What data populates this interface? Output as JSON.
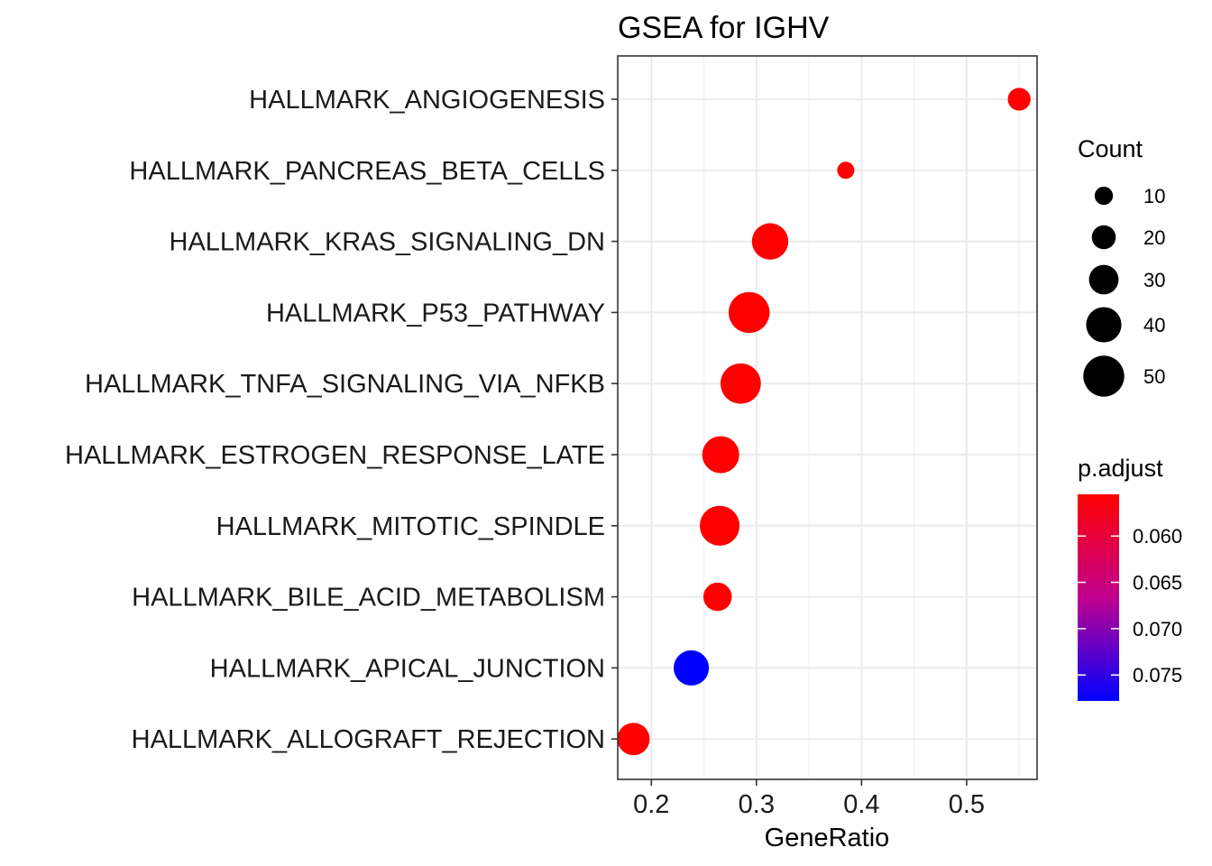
{
  "chart_data": {
    "type": "scatter",
    "title": "GSEA for IGHV",
    "xlabel": "GeneRatio",
    "ylabel": "",
    "xlim": [
      0.168,
      0.567
    ],
    "x_ticks": [
      0.2,
      0.3,
      0.4,
      0.5
    ],
    "x_tick_labels": [
      "0.2",
      "0.3",
      "0.4",
      "0.5"
    ],
    "grid": true,
    "categories": [
      "HALLMARK_ANGIOGENESIS",
      "HALLMARK_PANCREAS_BETA_CELLS",
      "HALLMARK_KRAS_SIGNALING_DN",
      "HALLMARK_P53_PATHWAY",
      "HALLMARK_TNFA_SIGNALING_VIA_NFKB",
      "HALLMARK_ESTROGEN_RESPONSE_LATE",
      "HALLMARK_MITOTIC_SPINDLE",
      "HALLMARK_BILE_ACID_METABOLISM",
      "HALLMARK_APICAL_JUNCTION",
      "HALLMARK_ALLOGRAFT_REJECTION"
    ],
    "points": [
      {
        "category": "HALLMARK_ANGIOGENESIS",
        "gene_ratio": 0.55,
        "count": 18,
        "p_adjust": 0.0555
      },
      {
        "category": "HALLMARK_PANCREAS_BETA_CELLS",
        "gene_ratio": 0.385,
        "count": 8,
        "p_adjust": 0.0555
      },
      {
        "category": "HALLMARK_KRAS_SIGNALING_DN",
        "gene_ratio": 0.313,
        "count": 42,
        "p_adjust": 0.0555
      },
      {
        "category": "HALLMARK_P53_PATHWAY",
        "gene_ratio": 0.293,
        "count": 50,
        "p_adjust": 0.0555
      },
      {
        "category": "HALLMARK_TNFA_SIGNALING_VIA_NFKB",
        "gene_ratio": 0.285,
        "count": 49,
        "p_adjust": 0.0555
      },
      {
        "category": "HALLMARK_ESTROGEN_RESPONSE_LATE",
        "gene_ratio": 0.266,
        "count": 43,
        "p_adjust": 0.0555
      },
      {
        "category": "HALLMARK_MITOTIC_SPINDLE",
        "gene_ratio": 0.265,
        "count": 48,
        "p_adjust": 0.0555
      },
      {
        "category": "HALLMARK_BILE_ACID_METABOLISM",
        "gene_ratio": 0.263,
        "count": 28,
        "p_adjust": 0.0555
      },
      {
        "category": "HALLMARK_APICAL_JUNCTION",
        "gene_ratio": 0.238,
        "count": 40,
        "p_adjust": 0.0778
      },
      {
        "category": "HALLMARK_ALLOGRAFT_REJECTION",
        "gene_ratio": 0.183,
        "count": 35,
        "p_adjust": 0.0555
      }
    ],
    "legend_size": {
      "title": "Count",
      "placement": "right",
      "entries": [
        {
          "label": "10",
          "value": 10
        },
        {
          "label": "20",
          "value": 20
        },
        {
          "label": "30",
          "value": 30
        },
        {
          "label": "40",
          "value": 40
        },
        {
          "label": "50",
          "value": 50
        }
      ]
    },
    "legend_color": {
      "title": "p.adjust",
      "placement": "right",
      "range": [
        0.0555,
        0.0778
      ],
      "low_color": "#ff0000",
      "high_color": "#0000ff",
      "ticks": [
        {
          "label": "0.060",
          "value": 0.06
        },
        {
          "label": "0.065",
          "value": 0.065
        },
        {
          "label": "0.070",
          "value": 0.07
        },
        {
          "label": "0.075",
          "value": 0.075
        }
      ]
    }
  }
}
